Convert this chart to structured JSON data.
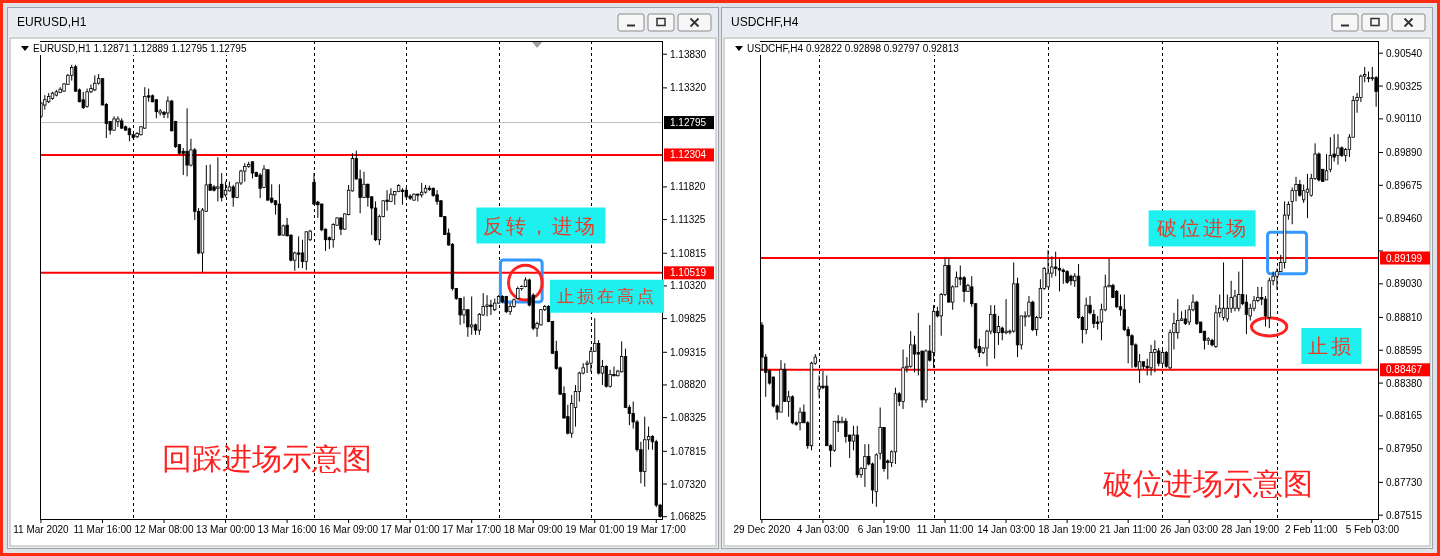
{
  "chart_data": [
    {
      "type": "candlestick",
      "title": "EURUSD,H1",
      "subtitle": "EURUSD,H1  1.12871 1.12889 1.12795 1.12795",
      "categories": [
        "11 Mar 2020",
        null,
        null,
        null,
        null,
        null,
        null,
        null,
        null,
        null,
        null,
        null,
        null,
        null,
        null,
        null,
        "11 Mar 16:00",
        null,
        null,
        null,
        null,
        null,
        null,
        null,
        null,
        null,
        null,
        null,
        null,
        null,
        null,
        null,
        "12 Mar 08:00",
        null,
        null,
        null,
        null,
        null,
        null,
        null,
        null,
        null,
        null,
        null,
        null,
        null,
        null,
        null,
        "13 Mar 00:00",
        null,
        null,
        null,
        null,
        null,
        null,
        null,
        null,
        null,
        null,
        null,
        null,
        null,
        null,
        null,
        "13 Mar 16:00",
        null,
        null,
        null,
        null,
        null,
        null,
        null,
        null,
        null,
        null,
        null,
        null,
        null,
        null,
        null,
        "16 Mar 09:00",
        null,
        null,
        null,
        null,
        null,
        null,
        null,
        null,
        null,
        null,
        null,
        null,
        null,
        null,
        null,
        "17 Mar 01:00",
        null,
        null,
        null,
        null,
        null,
        null,
        null,
        null,
        null,
        null,
        null,
        null,
        null,
        null,
        null,
        "17 Mar 17:00",
        null,
        null,
        null,
        null,
        null,
        null,
        null,
        null,
        null,
        null,
        null,
        null,
        null,
        null,
        null,
        "18 Mar 09:00",
        null,
        null,
        null,
        null,
        null,
        null,
        null,
        null,
        null,
        null,
        null,
        null,
        null,
        null,
        null,
        "19 Mar 01:00",
        null,
        null,
        null,
        null,
        null,
        null,
        null,
        null,
        null,
        null,
        null,
        null,
        null,
        null,
        null,
        "19 Mar 17:00",
        null
      ],
      "ylim": [
        1.0679,
        1.1403
      ],
      "yticks": [
        {
          "value": 1.1383,
          "label": "1.13830"
        },
        {
          "value": 1.1332,
          "label": "1.13320"
        },
        {
          "value": 1.1182,
          "label": "1.11820"
        },
        {
          "value": 1.11325,
          "label": "1.11325"
        },
        {
          "value": 1.10815,
          "label": "1.10815"
        },
        {
          "value": 1.1032,
          "label": "1.10320"
        },
        {
          "value": 1.09825,
          "label": "1.09825"
        },
        {
          "value": 1.09315,
          "label": "1.09315"
        },
        {
          "value": 1.0882,
          "label": "1.08820"
        },
        {
          "value": 1.08325,
          "label": "1.08325"
        },
        {
          "value": 1.07815,
          "label": "1.07815"
        },
        {
          "value": 1.0732,
          "label": "1.07320"
        },
        {
          "value": 1.06825,
          "label": "1.06825"
        }
      ],
      "color": "#000000",
      "ohlc": [
        [
          1.1289,
          1.1311,
          1.1286,
          1.1309
        ],
        [
          1.1306,
          1.1321,
          1.1299,
          1.1314
        ],
        [
          1.1311,
          1.1324,
          1.1309,
          1.1319
        ],
        [
          1.1316,
          1.1326,
          1.1314,
          1.1324
        ],
        [
          1.1321,
          1.1329,
          1.1319,
          1.1326
        ],
        [
          1.1325,
          1.1333,
          1.1324,
          1.133
        ],
        [
          1.1327,
          1.1339,
          1.1326,
          1.1338
        ],
        [
          1.1337,
          1.1353,
          1.1337,
          1.1351
        ],
        [
          1.1351,
          1.1367,
          1.1343,
          1.1363
        ],
        [
          1.1364,
          1.1367,
          1.1326,
          1.1327
        ],
        [
          1.1329,
          1.1331,
          1.131,
          1.1311
        ],
        [
          1.1314,
          1.1326,
          1.13,
          1.1302
        ],
        [
          1.1304,
          1.1331,
          1.1302,
          1.1326
        ],
        [
          1.1326,
          1.1337,
          1.1324,
          1.1331
        ],
        [
          1.1329,
          1.1351,
          1.1327,
          1.1339
        ],
        [
          1.1339,
          1.1353,
          1.1337,
          1.1346
        ],
        [
          1.1346,
          1.1347,
          1.1306,
          1.1306
        ],
        [
          1.1307,
          1.1309,
          1.1256,
          1.1278
        ],
        [
          1.1281,
          1.1282,
          1.1261,
          1.1268
        ],
        [
          1.1268,
          1.1289,
          1.1267,
          1.1285
        ],
        [
          1.1281,
          1.1289,
          1.1273,
          1.1285
        ],
        [
          1.1282,
          1.1286,
          1.127,
          1.1271
        ],
        [
          1.1273,
          1.1275,
          1.1267,
          1.1268
        ],
        [
          1.127,
          1.1272,
          1.1251,
          1.1261
        ],
        [
          1.1261,
          1.1263,
          1.1255,
          1.1257
        ],
        [
          1.1258,
          1.1265,
          1.1256,
          1.1263
        ],
        [
          1.1261,
          1.1274,
          1.126,
          1.1273
        ],
        [
          1.1271,
          1.1333,
          1.127,
          1.1319
        ],
        [
          1.132,
          1.1331,
          1.1311,
          1.1318
        ],
        [
          1.132,
          1.1322,
          1.131,
          1.1311
        ],
        [
          1.1314,
          1.1315,
          1.1286,
          1.1296
        ],
        [
          1.1294,
          1.13,
          1.129,
          1.1297
        ],
        [
          1.1295,
          1.1297,
          1.1286,
          1.1292
        ],
        [
          1.1294,
          1.1319,
          1.1286,
          1.1312
        ],
        [
          1.1312,
          1.1314,
          1.1266,
          1.1267
        ],
        [
          1.1281,
          1.1282,
          1.1241,
          1.1243
        ],
        [
          1.1246,
          1.1247,
          1.123,
          1.1233
        ],
        [
          1.1236,
          1.1241,
          1.12,
          1.1233
        ],
        [
          1.1236,
          1.1301,
          1.1198,
          1.1215
        ],
        [
          1.1215,
          1.1255,
          1.1213,
          1.1238
        ],
        [
          1.1238,
          1.1241,
          1.1132,
          1.1145
        ],
        [
          1.1145,
          1.115,
          1.108,
          1.1082
        ],
        [
          1.1082,
          1.115,
          1.1053,
          1.1147
        ],
        [
          1.1145,
          1.1215,
          1.1144,
          1.1185
        ],
        [
          1.1186,
          1.1216,
          1.1176,
          1.1177
        ],
        [
          1.1182,
          1.1185,
          1.1175,
          1.1177
        ],
        [
          1.118,
          1.1227,
          1.116,
          1.1182
        ],
        [
          1.1186,
          1.1203,
          1.116,
          1.1166
        ],
        [
          1.117,
          1.119,
          1.1167,
          1.1177
        ],
        [
          1.1176,
          1.119,
          1.1175,
          1.1182
        ],
        [
          1.1182,
          1.1185,
          1.1152,
          1.1166
        ],
        [
          1.1166,
          1.1189,
          1.1165,
          1.1188
        ],
        [
          1.1188,
          1.1208,
          1.1185,
          1.1206
        ],
        [
          1.1206,
          1.1218,
          1.119,
          1.1213
        ],
        [
          1.1213,
          1.122,
          1.1211,
          1.1216
        ],
        [
          1.122,
          1.1221,
          1.1195,
          1.1203
        ],
        [
          1.1204,
          1.1205,
          1.1197,
          1.1198
        ],
        [
          1.12,
          1.1203,
          1.1165,
          1.118
        ],
        [
          1.1181,
          1.1215,
          1.118,
          1.1209
        ],
        [
          1.1208,
          1.1209,
          1.1161,
          1.1162
        ],
        [
          1.1165,
          1.1186,
          1.1157,
          1.1159
        ],
        [
          1.1161,
          1.1162,
          1.114,
          1.1155
        ],
        [
          1.1156,
          1.1186,
          1.1108,
          1.1109
        ],
        [
          1.1109,
          1.1125,
          1.1108,
          1.1123
        ],
        [
          1.1124,
          1.1135,
          1.1107,
          1.1108
        ],
        [
          1.1109,
          1.111,
          1.1069,
          1.1071
        ],
        [
          1.1071,
          1.1084,
          1.1055,
          1.1082
        ],
        [
          1.1082,
          1.1107,
          1.1059,
          1.108
        ],
        [
          1.1082,
          1.1102,
          1.1059,
          1.1069
        ],
        [
          1.1069,
          1.1115,
          1.1056,
          1.1114
        ],
        [
          1.1102,
          1.1117,
          1.11,
          1.1115
        ],
        [
          1.1189,
          1.1203,
          1.1155,
          1.1156
        ],
        [
          1.1159,
          1.1161,
          1.1135,
          1.1155
        ],
        [
          1.1156,
          1.1157,
          1.1115,
          1.1117
        ],
        [
          1.1118,
          1.1119,
          1.1085,
          1.1102
        ],
        [
          1.1105,
          1.1107,
          1.1088,
          1.1102
        ],
        [
          1.1102,
          1.1127,
          1.109,
          1.1125
        ],
        [
          1.1124,
          1.1136,
          1.1123,
          1.1135
        ],
        [
          1.1135,
          1.1136,
          1.1109,
          1.1118
        ],
        [
          1.1118,
          1.1142,
          1.1117,
          1.1141
        ],
        [
          1.114,
          1.1185,
          1.1139,
          1.1177
        ],
        [
          1.1176,
          1.1233,
          1.1175,
          1.1225
        ],
        [
          1.1225,
          1.1237,
          1.1193,
          1.1194
        ],
        [
          1.1194,
          1.1208,
          1.1142,
          1.1166
        ],
        [
          1.1166,
          1.1205,
          1.1165,
          1.1186
        ],
        [
          1.1186,
          1.1187,
          1.1152,
          1.1166
        ],
        [
          1.1167,
          1.1168,
          1.1109,
          1.115
        ],
        [
          1.115,
          1.116,
          1.11,
          1.1102
        ],
        [
          1.1102,
          1.114,
          1.1094,
          1.1137
        ],
        [
          1.1137,
          1.1162,
          1.1136,
          1.1161
        ],
        [
          1.1162,
          1.1177,
          1.1146,
          1.116
        ],
        [
          1.116,
          1.118,
          1.1159,
          1.1171
        ],
        [
          1.117,
          1.1176,
          1.1155,
          1.1175
        ],
        [
          1.1175,
          1.1186,
          1.1174,
          1.1184
        ],
        [
          1.1177,
          1.118,
          1.1155,
          1.1175
        ],
        [
          1.1177,
          1.1182,
          1.1165,
          1.1167
        ],
        [
          1.1168,
          1.1171,
          1.1162,
          1.1165
        ],
        [
          1.1162,
          1.1172,
          1.1161,
          1.1171
        ],
        [
          1.1171,
          1.1172,
          1.116,
          1.117
        ],
        [
          1.117,
          1.1188,
          1.1166,
          1.1174
        ],
        [
          1.1174,
          1.1185,
          1.1172,
          1.118
        ],
        [
          1.118,
          1.1184,
          1.1176,
          1.1178
        ],
        [
          1.118,
          1.1181,
          1.1167,
          1.1169
        ],
        [
          1.117,
          1.1177,
          1.1155,
          1.116
        ],
        [
          1.1161,
          1.1162,
          1.1136,
          1.1137
        ],
        [
          1.1137,
          1.1138,
          1.1109,
          1.111
        ],
        [
          1.1112,
          1.1119,
          1.1093,
          1.1094
        ],
        [
          1.1095,
          1.1097,
          1.1025,
          1.1028
        ],
        [
          1.1028,
          1.1029,
          1.1011,
          1.1013
        ],
        [
          1.1013,
          1.1014,
          1.0973,
          1.0988
        ],
        [
          1.0988,
          1.1016,
          1.0975,
          1.0996
        ],
        [
          1.0996,
          1.0997,
          1.0955,
          1.097
        ],
        [
          1.097,
          1.1016,
          1.0958,
          1.0973
        ],
        [
          1.0973,
          1.0975,
          1.0958,
          1.0965
        ],
        [
          1.0965,
          1.0991,
          1.0958,
          1.0989
        ],
        [
          1.0988,
          1.1021,
          1.0987,
          1.1001
        ],
        [
          1.1001,
          1.1018,
          1.0986,
          1.1003
        ],
        [
          1.1003,
          1.1011,
          1.0988,
          1.1001
        ],
        [
          1.0996,
          1.1013,
          1.0994,
          1.1006
        ],
        [
          1.1006,
          1.1018,
          1.1005,
          1.1016
        ],
        [
          1.1016,
          1.1018,
          1.1006,
          1.1008
        ],
        [
          1.1016,
          1.1017,
          1.0991,
          1.0993
        ],
        [
          1.0993,
          1.1006,
          1.0988,
          1.1001
        ],
        [
          1.1001,
          1.1013,
          1.0999,
          1.1011
        ],
        [
          1.1013,
          1.1031,
          1.1012,
          1.1028
        ],
        [
          1.1028,
          1.1033,
          1.1025,
          1.1031
        ],
        [
          1.1031,
          1.1045,
          1.103,
          1.1041
        ],
        [
          1.1041,
          1.1043,
          1.1001,
          1.1003
        ],
        [
          1.1018,
          1.1021,
          1.0965,
          1.0968
        ],
        [
          1.0968,
          1.0978,
          1.0955,
          1.0975
        ],
        [
          1.0973,
          1.0997,
          1.0972,
          1.0996
        ],
        [
          1.0996,
          1.1003,
          1.0994,
          1.1001
        ],
        [
          1.1001,
          1.1003,
          1.0977,
          1.0978
        ],
        [
          1.0978,
          1.0979,
          1.0929,
          1.093
        ],
        [
          1.0933,
          1.0949,
          1.0905,
          1.0907
        ],
        [
          1.0908,
          1.091,
          1.0867,
          1.0868
        ],
        [
          1.0869,
          1.088,
          1.0831,
          1.0832
        ],
        [
          1.0834,
          1.0852,
          1.0807,
          1.0809
        ],
        [
          1.0809,
          1.0867,
          1.0802,
          1.0854
        ],
        [
          1.0848,
          1.0882,
          1.0819,
          1.0872
        ],
        [
          1.0872,
          1.0902,
          1.0857,
          1.09
        ],
        [
          1.09,
          1.0915,
          1.0898,
          1.0908
        ],
        [
          1.0913,
          1.0919,
          1.09,
          1.0915
        ],
        [
          1.0915,
          1.0939,
          1.0902,
          1.0933
        ],
        [
          1.0933,
          1.0983,
          1.0932,
          1.0945
        ],
        [
          1.0945,
          1.095,
          1.0898,
          1.09
        ],
        [
          1.09,
          1.092,
          1.0882,
          1.091
        ],
        [
          1.091,
          1.0912,
          1.0878,
          1.088
        ],
        [
          1.088,
          1.0905,
          1.0878,
          1.0898
        ],
        [
          1.0898,
          1.091,
          1.0895,
          1.0896
        ],
        [
          1.0896,
          1.0905,
          1.0895,
          1.0903
        ],
        [
          1.0902,
          1.0948,
          1.0901,
          1.0925
        ],
        [
          1.0925,
          1.0937,
          1.0847,
          1.0848
        ],
        [
          1.0848,
          1.0852,
          1.0821,
          1.0839
        ],
        [
          1.0839,
          1.0857,
          1.0816,
          1.0826
        ],
        [
          1.0826,
          1.0829,
          1.0781,
          1.0784
        ],
        [
          1.0784,
          1.0796,
          1.0733,
          1.0751
        ],
        [
          1.0751,
          1.0834,
          1.0728,
          1.0799
        ],
        [
          1.0799,
          1.0819,
          1.0784,
          1.0804
        ],
        [
          1.0804,
          1.0806,
          1.0784,
          1.0796
        ],
        [
          1.0796,
          1.0799,
          1.0697,
          1.07
        ],
        [
          1.07,
          1.0702,
          1.0681,
          1.0683
        ]
      ],
      "ref_lines": [
        {
          "axis": "y",
          "value": 1.12795,
          "label": "1.12795",
          "color": "#c0c0c0"
        },
        {
          "axis": "y",
          "value": 1.12304,
          "label": "1.12304",
          "color": "#ff0000"
        },
        {
          "axis": "y",
          "value": 1.10519,
          "label": "1.10519",
          "color": "#ff0000"
        }
      ],
      "annotations": [
        "反转，进场",
        "止损在高点",
        "回踩进场示意图"
      ]
    },
    {
      "type": "candlestick",
      "title": "USDCHF,H4",
      "subtitle": "USDCHF,H4  0.92822 0.92898 0.92797 0.92813",
      "categories": [
        "29 Dec 2020",
        null,
        null,
        null,
        null,
        null,
        null,
        null,
        null,
        null,
        null,
        null,
        null,
        null,
        null,
        null,
        "4 Jan 03:00",
        null,
        null,
        null,
        null,
        null,
        null,
        null,
        null,
        null,
        null,
        null,
        null,
        null,
        null,
        null,
        "6 Jan 19:00",
        null,
        null,
        null,
        null,
        null,
        null,
        null,
        null,
        null,
        null,
        null,
        null,
        null,
        null,
        null,
        "11 Jan 11:00",
        null,
        null,
        null,
        null,
        null,
        null,
        null,
        null,
        null,
        null,
        null,
        null,
        null,
        null,
        null,
        "14 Jan 03:00",
        null,
        null,
        null,
        null,
        null,
        null,
        null,
        null,
        null,
        null,
        null,
        null,
        null,
        null,
        null,
        "18 Jan 19:00",
        null,
        null,
        null,
        null,
        null,
        null,
        null,
        null,
        null,
        null,
        null,
        null,
        null,
        null,
        null,
        "21 Jan 11:00",
        null,
        null,
        null,
        null,
        null,
        null,
        null,
        null,
        null,
        null,
        null,
        null,
        null,
        null,
        null,
        "26 Jan 03:00",
        null,
        null,
        null,
        null,
        null,
        null,
        null,
        null,
        null,
        null,
        null,
        null,
        null,
        null,
        null,
        "28 Jan 19:00",
        null,
        null,
        null,
        null,
        null,
        null,
        null,
        null,
        null,
        null,
        null,
        null,
        null,
        null,
        null,
        "2 Feb 11:00",
        null,
        null,
        null,
        null,
        null,
        null,
        null,
        null,
        null,
        null,
        null,
        null,
        null,
        null,
        null,
        "5 Feb 03:00",
        null
      ],
      "ylim": [
        0.8749,
        0.9062
      ],
      "yticks": [
        {
          "value": 0.9054,
          "label": "0.90540"
        },
        {
          "value": 0.90325,
          "label": "0.90325"
        },
        {
          "value": 0.9011,
          "label": "0.90110"
        },
        {
          "value": 0.8989,
          "label": "0.89890"
        },
        {
          "value": 0.89675,
          "label": "0.89675"
        },
        {
          "value": 0.8946,
          "label": "0.89460"
        },
        {
          "value": 0.89245,
          "label": null
        },
        {
          "value": 0.8903,
          "label": "0.89030"
        },
        {
          "value": 0.8881,
          "label": "0.88810"
        },
        {
          "value": 0.88595,
          "label": "0.88595"
        },
        {
          "value": 0.8838,
          "label": "0.88380"
        },
        {
          "value": 0.88165,
          "label": "0.88165"
        },
        {
          "value": 0.8795,
          "label": "0.87950"
        },
        {
          "value": 0.8773,
          "label": "0.87730"
        },
        {
          "value": 0.87515,
          "label": "0.87515"
        }
      ],
      "color": "#000000",
      "ohlc": [
        [
          0.8876,
          0.8878,
          0.8846,
          0.8855
        ],
        [
          0.8855,
          0.8857,
          0.8829,
          0.8845
        ],
        [
          0.8846,
          0.8847,
          0.8837,
          0.8838
        ],
        [
          0.8842,
          0.8842,
          0.8822,
          0.8823
        ],
        [
          0.8823,
          0.8824,
          0.8814,
          0.8819
        ],
        [
          0.8819,
          0.8853,
          0.8819,
          0.8847
        ],
        [
          0.8847,
          0.8851,
          0.8826,
          0.8826
        ],
        [
          0.8826,
          0.8833,
          0.8816,
          0.8829
        ],
        [
          0.8829,
          0.883,
          0.8811,
          0.8812
        ],
        [
          0.8812,
          0.8813,
          0.881,
          0.8811
        ],
        [
          0.8812,
          0.8822,
          0.8807,
          0.8819
        ],
        [
          0.8819,
          0.8824,
          0.8812,
          0.8812
        ],
        [
          0.8812,
          0.8813,
          0.8795,
          0.8797
        ],
        [
          0.8797,
          0.8852,
          0.8794,
          0.8851
        ],
        [
          0.8851,
          0.8857,
          0.885,
          0.8855
        ],
        [
          0.8834,
          0.8843,
          0.8828,
          0.8836
        ],
        [
          0.8836,
          0.8846,
          0.8834,
          0.8835
        ],
        [
          0.8836,
          0.8843,
          0.8797,
          0.8797
        ],
        [
          0.8797,
          0.8798,
          0.8783,
          0.8794
        ],
        [
          0.8794,
          0.8813,
          0.8793,
          0.8813
        ],
        [
          0.8813,
          0.8817,
          0.8806,
          0.8812
        ],
        [
          0.8812,
          0.8816,
          0.8812,
          0.8813
        ],
        [
          0.8813,
          0.8815,
          0.8799,
          0.8803
        ],
        [
          0.8804,
          0.8804,
          0.8789,
          0.88
        ],
        [
          0.88,
          0.881,
          0.8794,
          0.8804
        ],
        [
          0.8804,
          0.881,
          0.8776,
          0.8778
        ],
        [
          0.8778,
          0.8783,
          0.8776,
          0.8782
        ],
        [
          0.8782,
          0.8798,
          0.877,
          0.879
        ],
        [
          0.879,
          0.8798,
          0.8784,
          0.8785
        ],
        [
          0.8785,
          0.8786,
          0.8759,
          0.8768
        ],
        [
          0.8767,
          0.8792,
          0.8757,
          0.8791
        ],
        [
          0.8792,
          0.8822,
          0.8788,
          0.8809
        ],
        [
          0.8809,
          0.8809,
          0.878,
          0.8782
        ],
        [
          0.8787,
          0.8788,
          0.8775,
          0.8786
        ],
        [
          0.8786,
          0.8794,
          0.8783,
          0.8793
        ],
        [
          0.8793,
          0.8835,
          0.8785,
          0.8831
        ],
        [
          0.8831,
          0.8832,
          0.8823,
          0.8826
        ],
        [
          0.8826,
          0.886,
          0.8821,
          0.8848
        ],
        [
          0.8848,
          0.8855,
          0.8845,
          0.8849
        ],
        [
          0.8849,
          0.8872,
          0.8848,
          0.8863
        ],
        [
          0.8863,
          0.8869,
          0.8845,
          0.8857
        ],
        [
          0.8858,
          0.8884,
          0.8843,
          0.8857
        ],
        [
          0.8859,
          0.8859,
          0.8822,
          0.8827
        ],
        [
          0.8827,
          0.886,
          0.8825,
          0.8859
        ],
        [
          0.8859,
          0.8876,
          0.8852,
          0.8853
        ],
        [
          0.8858,
          0.8889,
          0.8848,
          0.8885
        ],
        [
          0.8885,
          0.8888,
          0.8881,
          0.8882
        ],
        [
          0.8882,
          0.8897,
          0.8869,
          0.8896
        ],
        [
          0.8896,
          0.892,
          0.8895,
          0.8915
        ],
        [
          0.8915,
          0.892,
          0.8891,
          0.8891
        ],
        [
          0.8891,
          0.8902,
          0.8886,
          0.8901
        ],
        [
          0.8901,
          0.8911,
          0.8901,
          0.8907
        ],
        [
          0.8907,
          0.8915,
          0.8902,
          0.8906
        ],
        [
          0.8907,
          0.8908,
          0.8891,
          0.8898
        ],
        [
          0.8898,
          0.8903,
          0.8898,
          0.8902
        ],
        [
          0.8901,
          0.8908,
          0.8888,
          0.889
        ],
        [
          0.889,
          0.889,
          0.886,
          0.8861
        ],
        [
          0.8862,
          0.8867,
          0.8855,
          0.8858
        ],
        [
          0.8858,
          0.8861,
          0.8857,
          0.8861
        ],
        [
          0.8861,
          0.8873,
          0.8849,
          0.8872
        ],
        [
          0.8872,
          0.8889,
          0.887,
          0.8883
        ],
        [
          0.8883,
          0.8889,
          0.8854,
          0.8871
        ],
        [
          0.8871,
          0.8882,
          0.8863,
          0.8875
        ],
        [
          0.8874,
          0.8875,
          0.8866,
          0.8871
        ],
        [
          0.8871,
          0.8893,
          0.887,
          0.8872
        ],
        [
          0.8872,
          0.8873,
          0.887,
          0.8872
        ],
        [
          0.8872,
          0.8917,
          0.8871,
          0.8903
        ],
        [
          0.8903,
          0.8907,
          0.8855,
          0.8863
        ],
        [
          0.8863,
          0.8882,
          0.886,
          0.8882
        ],
        [
          0.8882,
          0.8885,
          0.8875,
          0.8882
        ],
        [
          0.8882,
          0.8895,
          0.8881,
          0.8891
        ],
        [
          0.8891,
          0.8892,
          0.8872,
          0.8873
        ],
        [
          0.8873,
          0.8882,
          0.8869,
          0.8881
        ],
        [
          0.8881,
          0.8906,
          0.888,
          0.89
        ],
        [
          0.89,
          0.8914,
          0.8899,
          0.8913
        ],
        [
          0.8901,
          0.8925,
          0.8901,
          0.891
        ],
        [
          0.891,
          0.8921,
          0.8907,
          0.8914
        ],
        [
          0.8914,
          0.8924,
          0.8908,
          0.8913
        ],
        [
          0.8913,
          0.892,
          0.8898,
          0.8912
        ],
        [
          0.8912,
          0.8913,
          0.8903,
          0.8911
        ],
        [
          0.8911,
          0.8912,
          0.8903,
          0.8904
        ],
        [
          0.8908,
          0.8909,
          0.8902,
          0.8905
        ],
        [
          0.8905,
          0.891,
          0.8901,
          0.8908
        ],
        [
          0.8908,
          0.8916,
          0.888,
          0.8881
        ],
        [
          0.8881,
          0.8882,
          0.8864,
          0.8873
        ],
        [
          0.8873,
          0.8894,
          0.887,
          0.8889
        ],
        [
          0.8889,
          0.8895,
          0.8883,
          0.8884
        ],
        [
          0.8883,
          0.8886,
          0.8874,
          0.8877
        ],
        [
          0.8878,
          0.8882,
          0.8873,
          0.8877
        ],
        [
          0.8878,
          0.889,
          0.8866,
          0.8886
        ],
        [
          0.8886,
          0.8909,
          0.8885,
          0.8901
        ],
        [
          0.8901,
          0.892,
          0.8901,
          0.8902
        ],
        [
          0.8902,
          0.8903,
          0.8894,
          0.8894
        ],
        [
          0.8898,
          0.8899,
          0.8887,
          0.8888
        ],
        [
          0.8888,
          0.8896,
          0.8882,
          0.8886
        ],
        [
          0.8886,
          0.8896,
          0.8872,
          0.8873
        ],
        [
          0.8873,
          0.8875,
          0.8851,
          0.8869
        ],
        [
          0.8869,
          0.887,
          0.8848,
          0.8863
        ],
        [
          0.8863,
          0.8864,
          0.8848,
          0.8849
        ],
        [
          0.8847,
          0.8857,
          0.8838,
          0.8852
        ],
        [
          0.8852,
          0.8852,
          0.8847,
          0.8849
        ],
        [
          0.8849,
          0.8854,
          0.8843,
          0.8848
        ],
        [
          0.8848,
          0.8863,
          0.8843,
          0.8858
        ],
        [
          0.8858,
          0.8866,
          0.8845,
          0.886
        ],
        [
          0.8859,
          0.8861,
          0.8849,
          0.8851
        ],
        [
          0.8851,
          0.8861,
          0.8848,
          0.8858
        ],
        [
          0.8858,
          0.8859,
          0.8848,
          0.8849
        ],
        [
          0.8848,
          0.8873,
          0.8847,
          0.8871
        ],
        [
          0.8871,
          0.8884,
          0.886,
          0.8877
        ],
        [
          0.8871,
          0.8893,
          0.8867,
          0.8879
        ],
        [
          0.8879,
          0.8885,
          0.8879,
          0.888
        ],
        [
          0.888,
          0.8886,
          0.8876,
          0.8877
        ],
        [
          0.8878,
          0.8889,
          0.8876,
          0.8886
        ],
        [
          0.8886,
          0.8896,
          0.8885,
          0.8891
        ],
        [
          0.8891,
          0.8892,
          0.8876,
          0.8877
        ],
        [
          0.8878,
          0.8878,
          0.8871,
          0.8871
        ],
        [
          0.8872,
          0.8872,
          0.886,
          0.8866
        ],
        [
          0.8866,
          0.8868,
          0.8863,
          0.8867
        ],
        [
          0.8866,
          0.8867,
          0.8862,
          0.8863
        ],
        [
          0.8862,
          0.8889,
          0.8861,
          0.8884
        ],
        [
          0.8884,
          0.8896,
          0.8881,
          0.8887
        ],
        [
          0.8881,
          0.8917,
          0.8879,
          0.8887
        ],
        [
          0.888,
          0.8896,
          0.8878,
          0.8887
        ],
        [
          0.8887,
          0.8905,
          0.8884,
          0.8894
        ],
        [
          0.8887,
          0.8899,
          0.8885,
          0.8895
        ],
        [
          0.8887,
          0.8911,
          0.8885,
          0.8896
        ],
        [
          0.8896,
          0.8919,
          0.8889,
          0.889
        ],
        [
          0.8891,
          0.8896,
          0.887,
          0.8883
        ],
        [
          0.8882,
          0.889,
          0.8879,
          0.8887
        ],
        [
          0.8887,
          0.8895,
          0.8885,
          0.8892
        ],
        [
          0.8892,
          0.8901,
          0.8891,
          0.8894
        ],
        [
          0.8894,
          0.8901,
          0.8889,
          0.8893
        ],
        [
          0.8893,
          0.8895,
          0.8875,
          0.8882
        ],
        [
          0.8881,
          0.8907,
          0.8874,
          0.8905
        ],
        [
          0.8905,
          0.8911,
          0.8902,
          0.8908
        ],
        [
          0.8908,
          0.8913,
          0.8899,
          0.8911
        ],
        [
          0.8911,
          0.8922,
          0.8911,
          0.8917
        ],
        [
          0.8917,
          0.8957,
          0.8913,
          0.8948
        ],
        [
          0.8948,
          0.8957,
          0.8945,
          0.8955
        ],
        [
          0.8957,
          0.8966,
          0.8942,
          0.8964
        ],
        [
          0.8964,
          0.8973,
          0.8957,
          0.8968
        ],
        [
          0.8968,
          0.8971,
          0.896,
          0.8961
        ],
        [
          0.8958,
          0.8968,
          0.8956,
          0.8964
        ],
        [
          0.8963,
          0.8975,
          0.8946,
          0.8965
        ],
        [
          0.8961,
          0.8975,
          0.896,
          0.8972
        ],
        [
          0.8972,
          0.8995,
          0.8971,
          0.8988
        ],
        [
          0.8988,
          0.8989,
          0.897,
          0.8971
        ],
        [
          0.8978,
          0.8978,
          0.897,
          0.897
        ],
        [
          0.8971,
          0.8988,
          0.8971,
          0.8977
        ],
        [
          0.8978,
          0.8999,
          0.8976,
          0.8987
        ],
        [
          0.8988,
          0.9001,
          0.8983,
          0.8986
        ],
        [
          0.8987,
          0.9001,
          0.8981,
          0.8992
        ],
        [
          0.8992,
          0.8993,
          0.8986,
          0.8987
        ],
        [
          0.8987,
          0.8992,
          0.8983,
          0.8991
        ],
        [
          0.8991,
          0.9001,
          0.8986,
          0.8999
        ],
        [
          0.8999,
          0.9026,
          0.8999,
          0.9023
        ],
        [
          0.9023,
          0.9028,
          0.9015,
          0.9025
        ],
        [
          0.9025,
          0.904,
          0.9022,
          0.9039
        ],
        [
          0.9039,
          0.9045,
          0.9035,
          0.904
        ],
        [
          0.9038,
          0.9042,
          0.9035,
          0.9038
        ],
        [
          0.9038,
          0.9045,
          0.9036,
          0.9038
        ],
        [
          0.9038,
          0.9039,
          0.9019,
          0.9029
        ]
      ],
      "ref_lines": [
        {
          "axis": "y",
          "value": 0.89199,
          "label": "0.89199",
          "color": "#ff0000"
        },
        {
          "axis": "y",
          "value": 0.88467,
          "label": "0.88467",
          "color": "#ff0000"
        }
      ],
      "annotations": [
        "破位进场",
        "止损",
        "破位进场示意图"
      ]
    }
  ]
}
